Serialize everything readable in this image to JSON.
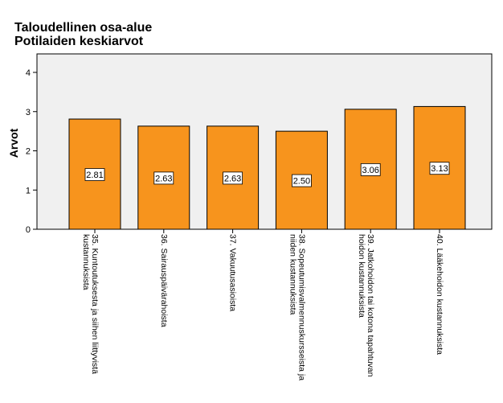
{
  "chart_data": {
    "type": "bar",
    "title": "Taloudellinen osa-alue",
    "subtitle": "Potilaiden keskiarvot",
    "ylabel": "Arvot",
    "xlabel": "",
    "ylim": [
      0,
      4
    ],
    "yticks": [
      "0",
      "1",
      "2",
      "3",
      "4"
    ],
    "categories": [
      [
        "35. Kuntoutuksesta ja siihen liittyvistä",
        "kustannuksista"
      ],
      [
        "36. Sairauspäivärahoista"
      ],
      [
        "37. Vakuutusasioista"
      ],
      [
        "38. Sopeutumisvalmennuskursseista ja",
        "niiden kustannuksista"
      ],
      [
        "39. Jatkohoidon tai kotona tapahtuvan",
        "hoidon kustannuksista"
      ],
      [
        "40. Lääkehoidon kustannuksista"
      ]
    ],
    "values": [
      2.81,
      2.63,
      2.63,
      2.5,
      3.06,
      3.13
    ],
    "value_labels": [
      "2.81",
      "2.63",
      "2.63",
      "2.50",
      "3.06",
      "3.13"
    ],
    "bar_color": "#f7941d",
    "plot_background": "#f0f0f0",
    "grid": false,
    "legend": "none"
  }
}
